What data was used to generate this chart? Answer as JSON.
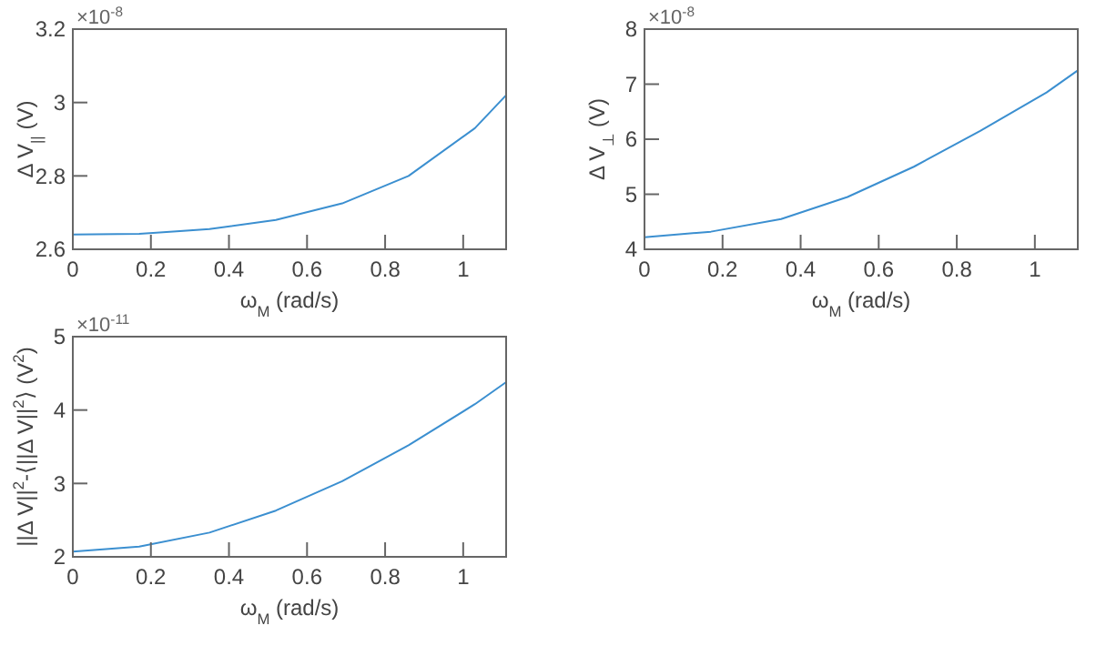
{
  "chart_data": [
    {
      "type": "line",
      "xlabel": "ω$_{M}$ (rad/s)",
      "ylabel": "Δ V$_{||}$ (V)",
      "annotations": [
        "×10$^{-8}$"
      ],
      "xlim": [
        0,
        1.11
      ],
      "xticks": [
        0,
        0.2,
        0.4,
        0.6,
        0.8,
        1
      ],
      "ylim": [
        2.6,
        3.2
      ],
      "yticks": [
        2.6,
        2.8,
        3,
        3.2
      ],
      "grid": false,
      "series": [
        {
          "color": "#3b8fd0",
          "x": [
            0,
            0.17,
            0.35,
            0.52,
            0.69,
            0.86,
            1.03,
            1.11
          ],
          "values": [
            2.64,
            2.642,
            2.655,
            2.68,
            2.725,
            2.8,
            2.93,
            3.02
          ]
        }
      ]
    },
    {
      "type": "line",
      "xlabel": "ω$_{M}$ (rad/s)",
      "ylabel": "Δ V$_{⊥}$ (V)",
      "annotations": [
        "×10$^{-8}$"
      ],
      "xlim": [
        0,
        1.11
      ],
      "xticks": [
        0,
        0.2,
        0.4,
        0.6,
        0.8,
        1
      ],
      "ylim": [
        4,
        8
      ],
      "yticks": [
        4,
        5,
        6,
        7,
        8
      ],
      "grid": false,
      "series": [
        {
          "color": "#3b8fd0",
          "x": [
            0,
            0.17,
            0.35,
            0.52,
            0.69,
            0.86,
            1.03,
            1.11
          ],
          "values": [
            4.22,
            4.32,
            4.55,
            4.95,
            5.5,
            6.15,
            6.85,
            7.25
          ]
        }
      ]
    },
    {
      "type": "line",
      "xlabel": "ω$_{M}$ (rad/s)",
      "ylabel": "||Δ V||$^{2}$-⟨||Δ V||$^{2}$⟩ (V$^{2}$)",
      "annotations": [
        "×10$^{-11}$"
      ],
      "xlim": [
        0,
        1.11
      ],
      "xticks": [
        0,
        0.2,
        0.4,
        0.6,
        0.8,
        1
      ],
      "ylim": [
        2,
        5
      ],
      "yticks": [
        2,
        3,
        4,
        5
      ],
      "grid": false,
      "series": [
        {
          "color": "#3b8fd0",
          "x": [
            0,
            0.17,
            0.35,
            0.52,
            0.69,
            0.86,
            1.03,
            1.11
          ],
          "values": [
            2.07,
            2.14,
            2.33,
            2.63,
            3.03,
            3.52,
            4.08,
            4.38
          ]
        }
      ]
    }
  ]
}
